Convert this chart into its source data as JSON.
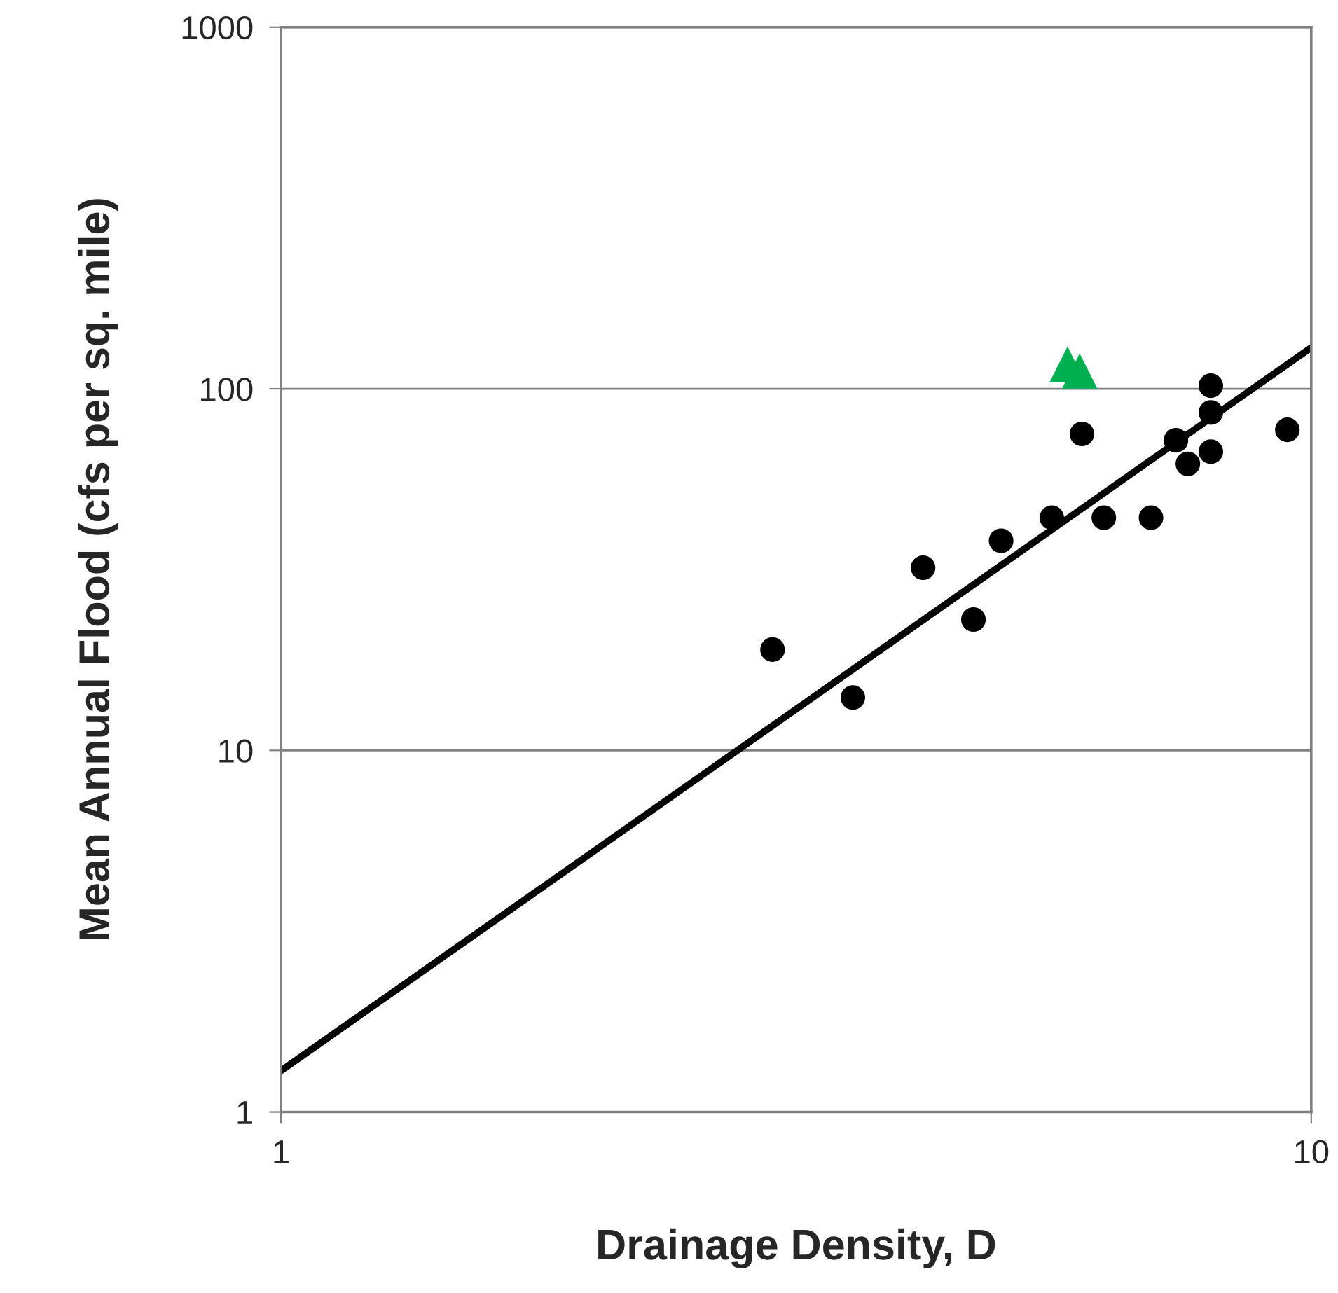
{
  "chart_data": {
    "type": "scatter",
    "xlabel": "Drainage Density, D",
    "ylabel": "Mean Annual Flood (cfs per sq. mile)",
    "log": "xy",
    "grid": "y",
    "xlim": [
      1,
      10
    ],
    "xticks": [
      1,
      10
    ],
    "ylim": [
      1,
      1000
    ],
    "yticks": [
      1,
      10,
      100,
      1000
    ],
    "series": [
      {
        "color": "#000000",
        "marker": "circle",
        "x": [
          3.0,
          3.59,
          4.2,
          4.7,
          5.0,
          5.6,
          5.99,
          6.29,
          6.99,
          7.39,
          7.59,
          7.99,
          7.99,
          7.99,
          9.48
        ],
        "values": [
          19,
          14,
          32,
          23,
          38,
          44,
          75,
          44,
          44,
          72,
          62,
          102,
          86,
          67,
          77
        ]
      },
      {
        "color": "#00b050",
        "marker": "triangle",
        "x": [
          5.8,
          5.96
        ],
        "values": [
          117,
          112
        ]
      },
      {
        "type": "line",
        "color": "#000000",
        "marker": "none",
        "x": [
          1,
          10
        ],
        "values": [
          1.3,
          130
        ]
      }
    ]
  }
}
